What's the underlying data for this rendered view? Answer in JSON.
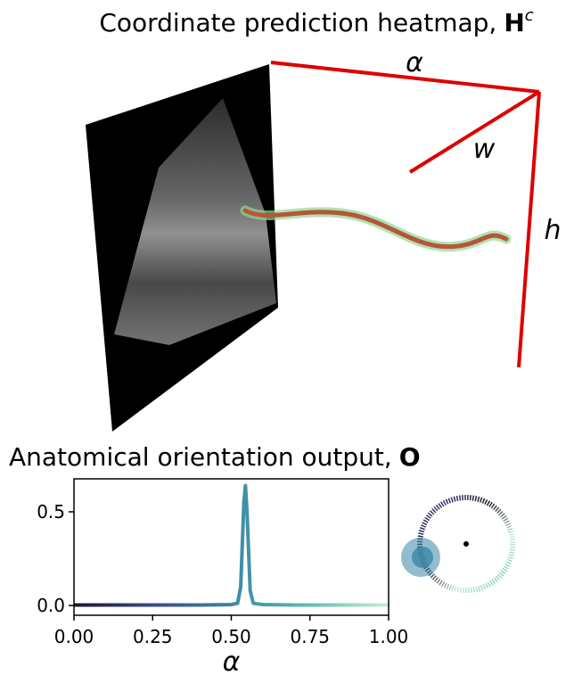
{
  "heatmap_panel": {
    "title": "Coordinate prediction heatmap,",
    "title_symbol": "H",
    "title_superscript": "c",
    "axis_alpha": "α",
    "axis_w": "w",
    "axis_h": "h"
  },
  "chart_data": {
    "type": "line",
    "title": "Anatomical orientation output,",
    "title_symbol": "O",
    "x_label": "α",
    "x": [
      0,
      0.05,
      0.1,
      0.15,
      0.2,
      0.25,
      0.3,
      0.35,
      0.4,
      0.45,
      0.5,
      0.52,
      0.53,
      0.54,
      0.545,
      0.55,
      0.56,
      0.57,
      0.6,
      0.65,
      0.7,
      0.75,
      0.8,
      0.85,
      0.9,
      0.95,
      1.0
    ],
    "values": [
      0.003,
      0.003,
      0.003,
      0.003,
      0.003,
      0.003,
      0.003,
      0.003,
      0.003,
      0.004,
      0.005,
      0.012,
      0.1,
      0.55,
      0.64,
      0.5,
      0.08,
      0.012,
      0.005,
      0.004,
      0.003,
      0.003,
      0.003,
      0.003,
      0.003,
      0.003,
      0.003
    ],
    "colormap": [
      "#22132b",
      "#3b4889",
      "#3a87a6",
      "#5dbeb0",
      "#cdeed5"
    ],
    "xlim": [
      0,
      1
    ],
    "ylim": [
      -0.052,
      0.676
    ],
    "xticks": [
      {
        "value": 0,
        "label": "0.00"
      },
      {
        "value": 0.25,
        "label": "0.25"
      },
      {
        "value": 0.5,
        "label": "0.50"
      },
      {
        "value": 0.75,
        "label": "0.75"
      },
      {
        "value": 1,
        "label": "1.00"
      }
    ],
    "yticks": [
      {
        "value": 0,
        "label": "0.0"
      },
      {
        "value": 0.5,
        "label": "0.5"
      }
    ],
    "grid": false
  }
}
